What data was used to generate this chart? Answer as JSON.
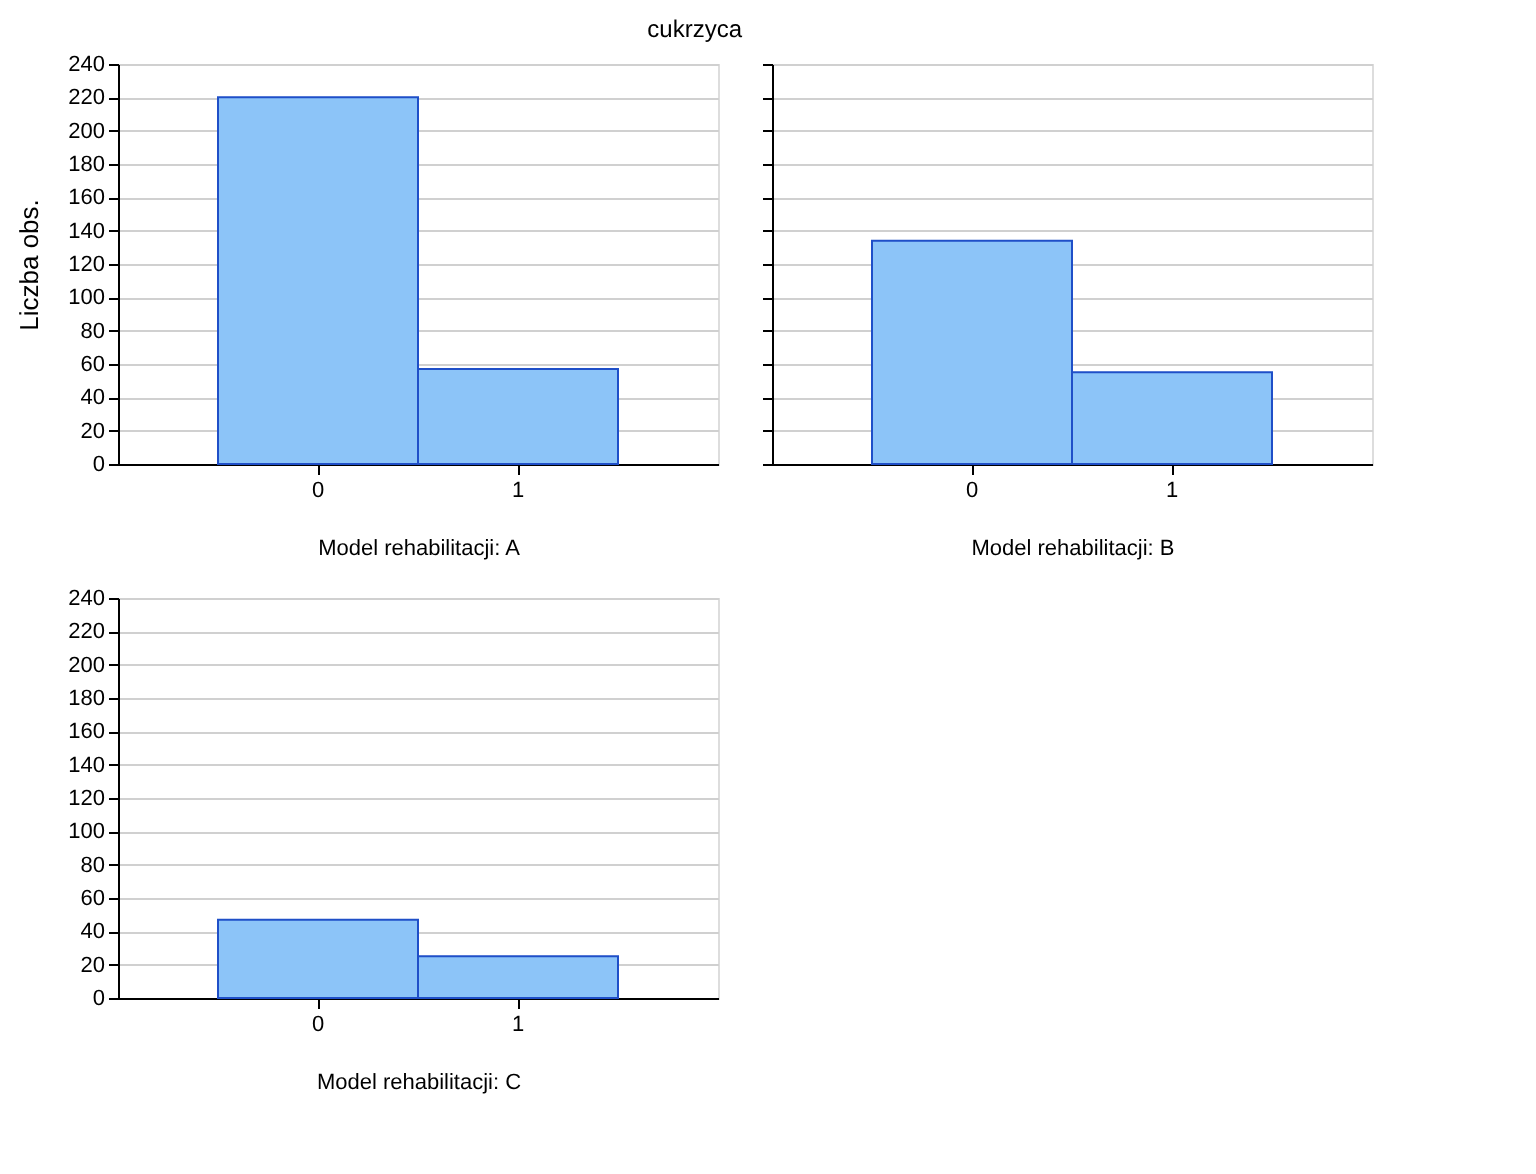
{
  "chart_data": [
    {
      "type": "bar",
      "title": "cukrzyca",
      "ylabel": "Liczba obs.",
      "xlabel": "Model rehabilitacji: A",
      "categories": [
        "0",
        "1"
      ],
      "series": [
        {
          "color": "#8cc4f8",
          "values": [
            220,
            57
          ]
        }
      ],
      "ylim": [
        0,
        240
      ],
      "yticks": [
        0,
        20,
        40,
        60,
        80,
        100,
        120,
        140,
        160,
        180,
        200,
        220,
        240
      ],
      "grid": "y",
      "legend": false
    },
    {
      "type": "bar",
      "xlabel": "Model rehabilitacji: B",
      "categories": [
        "0",
        "1"
      ],
      "series": [
        {
          "color": "#8cc4f8",
          "values": [
            134,
            55
          ]
        }
      ],
      "ylim": [
        0,
        240
      ],
      "yticks": [
        0,
        20,
        40,
        60,
        80,
        100,
        120,
        140,
        160,
        180,
        200,
        220,
        240
      ],
      "grid": "y",
      "legend": false,
      "tick_labels": "x"
    },
    {
      "type": "bar",
      "xlabel": "Model rehabilitacji: C",
      "categories": [
        "0",
        "1"
      ],
      "series": [
        {
          "color": "#8cc4f8",
          "values": [
            47,
            25
          ]
        }
      ],
      "ylim": [
        0,
        240
      ],
      "yticks": [
        0,
        20,
        40,
        60,
        80,
        100,
        120,
        140,
        160,
        180,
        200,
        220,
        240
      ],
      "grid": "y",
      "legend": false
    }
  ]
}
